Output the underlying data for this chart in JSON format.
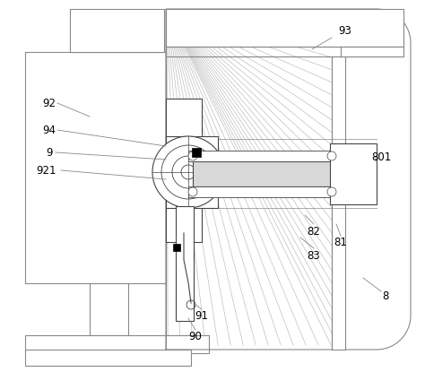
{
  "bg_color": "#ffffff",
  "line_color": "#888888",
  "dark_line": "#444444",
  "hatch_color": "#bbbbbb",
  "fig_w": 4.74,
  "fig_h": 4.15,
  "dpi": 100
}
